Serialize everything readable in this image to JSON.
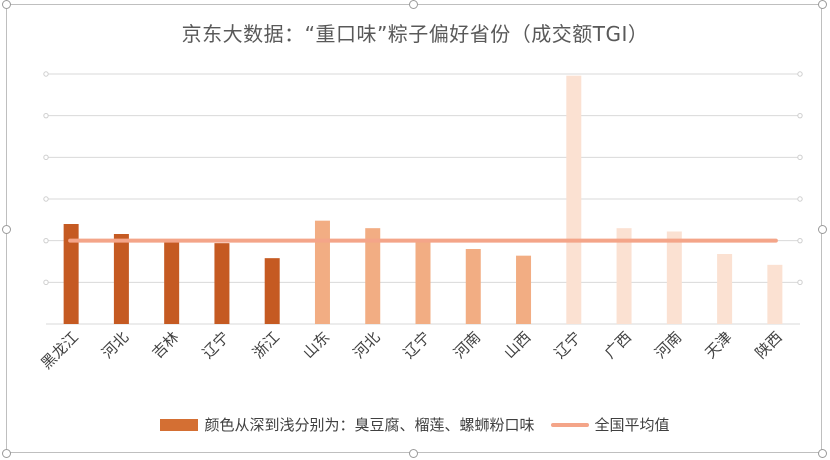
{
  "chart_data": {
    "type": "bar",
    "title": "京东大数据：“重口味”粽子偏好省份（成交额TGI）",
    "categories": [
      "黑龙江",
      "河北",
      "吉林",
      "辽宁",
      "浙江",
      "山东",
      "河北",
      "辽宁",
      "河南",
      "山西",
      "辽宁",
      "广西",
      "河南",
      "天津",
      "陕西"
    ],
    "values": [
      120,
      108,
      101,
      97,
      79,
      124,
      115,
      99,
      90,
      82,
      298,
      115,
      111,
      84,
      71
    ],
    "bar_groups": [
      "臭豆腐",
      "臭豆腐",
      "臭豆腐",
      "臭豆腐",
      "臭豆腐",
      "榴莲",
      "榴莲",
      "榴莲",
      "榴莲",
      "榴莲",
      "螺蛳粉",
      "螺蛳粉",
      "螺蛳粉",
      "螺蛳粉",
      "螺蛳粉"
    ],
    "group_colors": {
      "臭豆腐": "#c55a22",
      "榴莲": "#f2ad83",
      "螺蛳粉": "#fbe1d2"
    },
    "baseline": {
      "name": "全国平均值",
      "value": 100,
      "color": "#f4a589"
    },
    "ylim": [
      0,
      300
    ],
    "grid": true,
    "legend": [
      {
        "kind": "bar",
        "label": "颜色从深到浅分别为：臭豆腐、榴莲、螺蛳粉口味",
        "color": "#d46f33"
      },
      {
        "kind": "line",
        "label": "全国平均值",
        "color": "#f4a589"
      }
    ]
  }
}
